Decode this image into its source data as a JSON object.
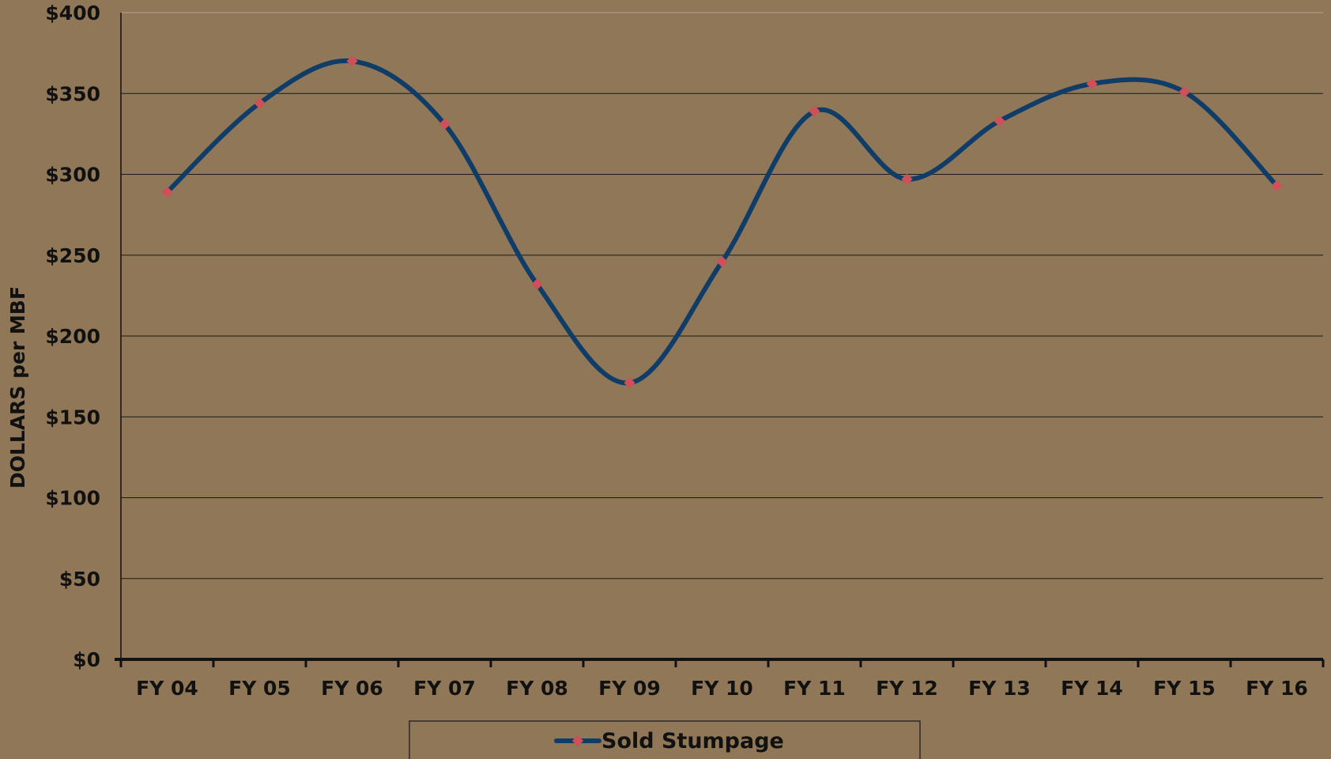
{
  "chart_data": {
    "type": "line",
    "title": "",
    "xlabel": "",
    "ylabel": "DOLLARS per MBF",
    "categories": [
      "FY 04",
      "FY 05",
      "FY 06",
      "FY 07",
      "FY 08",
      "FY 09",
      "FY 10",
      "FY 11",
      "FY 12",
      "FY 13",
      "FY 14",
      "FY 15",
      "FY 16"
    ],
    "series": [
      {
        "name": "Sold Stumpage",
        "values": [
          289,
          344,
          370,
          331,
          232,
          171,
          246,
          339,
          297,
          333,
          356,
          351,
          293
        ]
      }
    ],
    "ylim": [
      0,
      400
    ],
    "ytick_step": 50,
    "ytick_labels": [
      "$0",
      "$50",
      "$100",
      "$150",
      "$200",
      "$250",
      "$300",
      "$350",
      "$400"
    ],
    "grid": true,
    "smooth": true,
    "legend_position": "bottom",
    "colors": {
      "background": "#8f7757",
      "line": "#0f3d68",
      "marker": "#d0505a",
      "grid": "#1a1a1a",
      "axis": "#111111"
    }
  }
}
